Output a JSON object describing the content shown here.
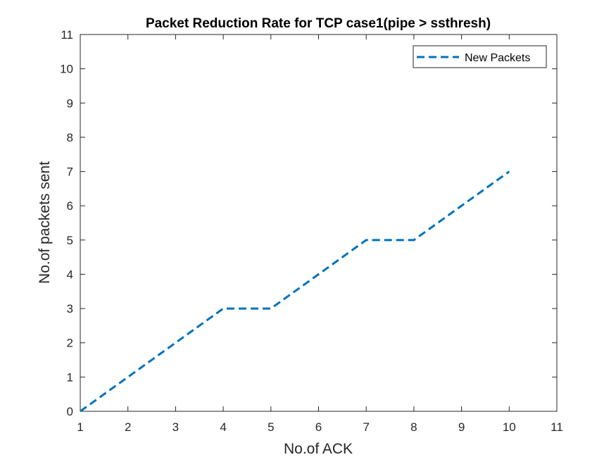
{
  "chart_data": {
    "type": "line",
    "title": "Packet Reduction Rate for TCP case1(pipe > ssthresh)",
    "xlabel": "No.of ACK",
    "ylabel": "No.of packets sent",
    "xlim": [
      1,
      11
    ],
    "ylim": [
      0,
      11
    ],
    "xticks": [
      1,
      2,
      3,
      4,
      5,
      6,
      7,
      8,
      9,
      10,
      11
    ],
    "yticks": [
      0,
      1,
      2,
      3,
      4,
      5,
      6,
      7,
      8,
      9,
      10,
      11
    ],
    "grid": false,
    "legend_position": "top-right",
    "series": [
      {
        "name": "New Packets",
        "color": "#0072BD",
        "line_style": "dashed",
        "x": [
          1,
          2,
          3,
          4,
          5,
          6,
          7,
          8,
          9,
          10
        ],
        "y": [
          0,
          1,
          2,
          3,
          3,
          4,
          5,
          5,
          6,
          7
        ]
      }
    ]
  }
}
